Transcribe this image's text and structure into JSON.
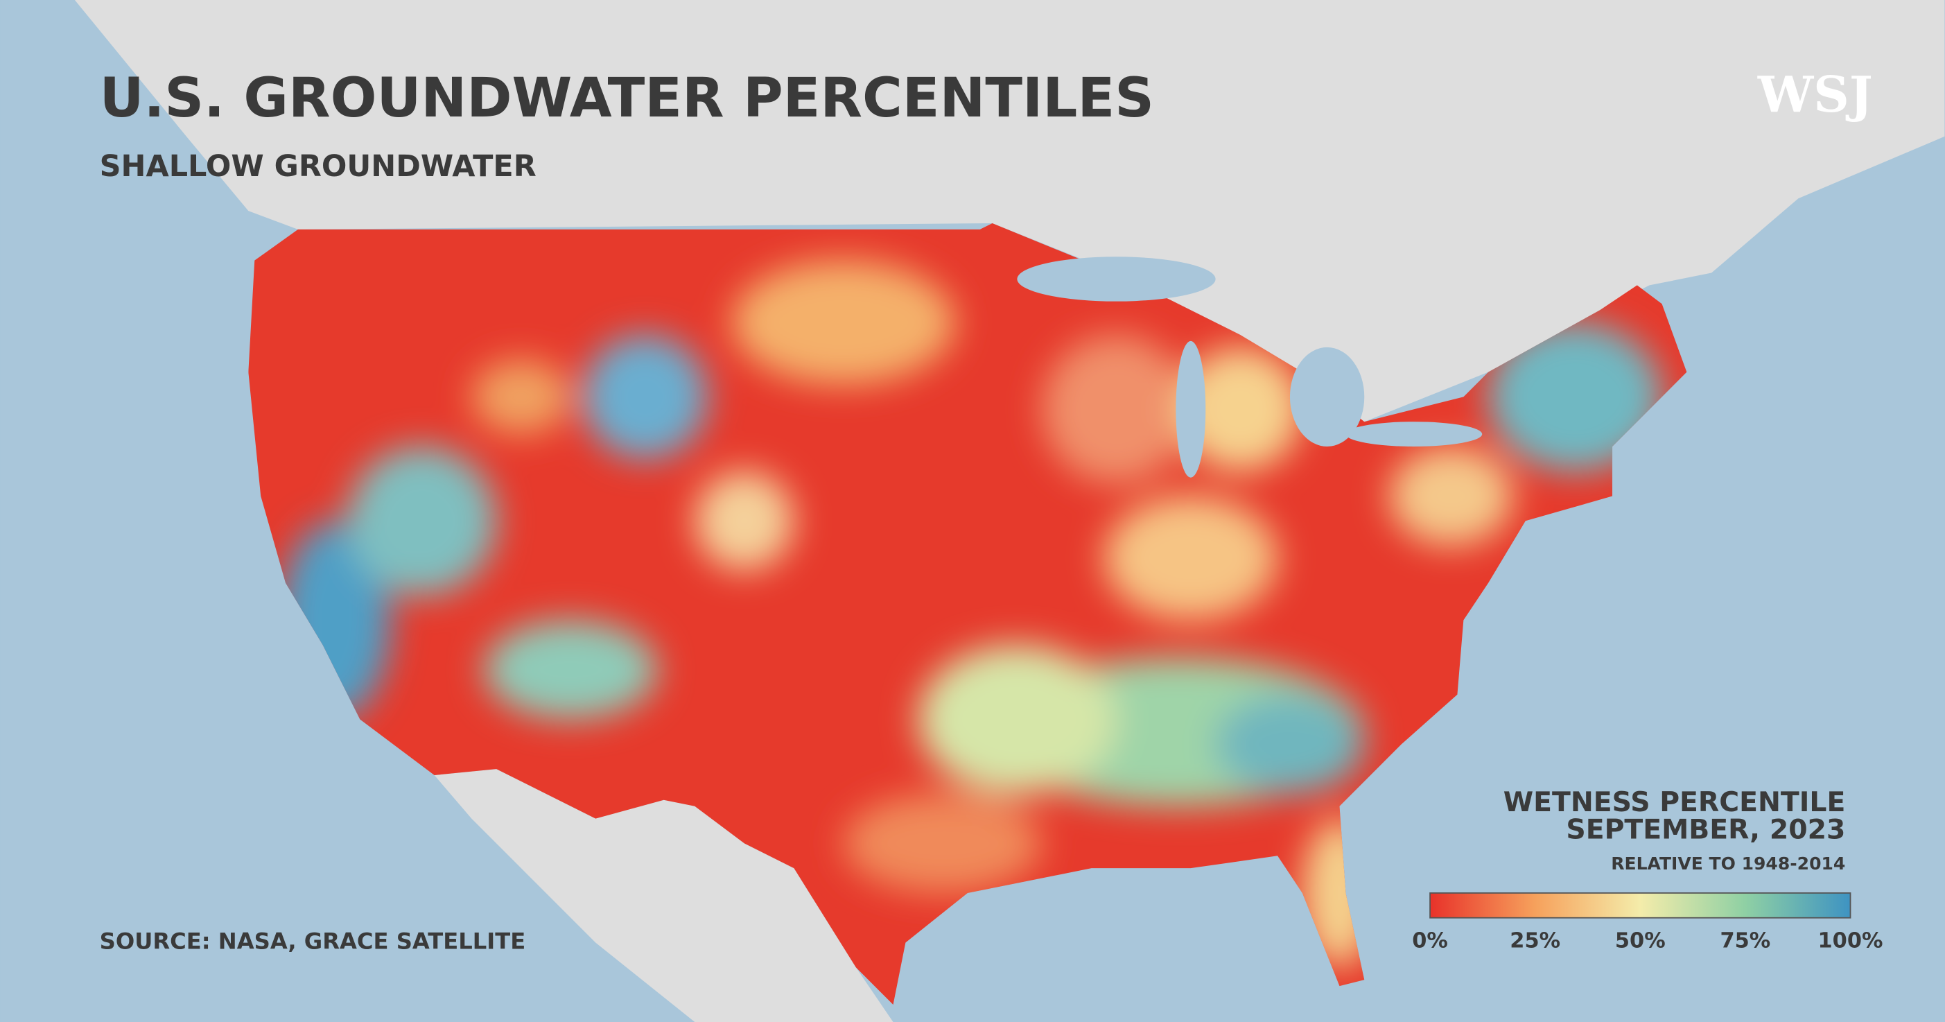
{
  "header": {
    "title": "U.S. GROUNDWATER PERCENTILES",
    "subtitle": "SHALLOW GROUNDWATER",
    "logo": "WSJ"
  },
  "source": "SOURCE: NASA, GRACE SATELLITE",
  "legend": {
    "title": "WETNESS PERCENTILE",
    "date": "SEPTEMBER, 2023",
    "note": "RELATIVE TO 1948-2014",
    "range": [
      0,
      100
    ],
    "colors": [
      "#e8322a",
      "#f6a15c",
      "#f4ecaa",
      "#8fd0a4",
      "#3e93c2"
    ],
    "ticks": [
      {
        "value": 0,
        "label": "0%"
      },
      {
        "value": 25,
        "label": "25%"
      },
      {
        "value": 50,
        "label": "50%"
      },
      {
        "value": 75,
        "label": "75%"
      },
      {
        "value": 100,
        "label": "100%"
      }
    ]
  }
}
